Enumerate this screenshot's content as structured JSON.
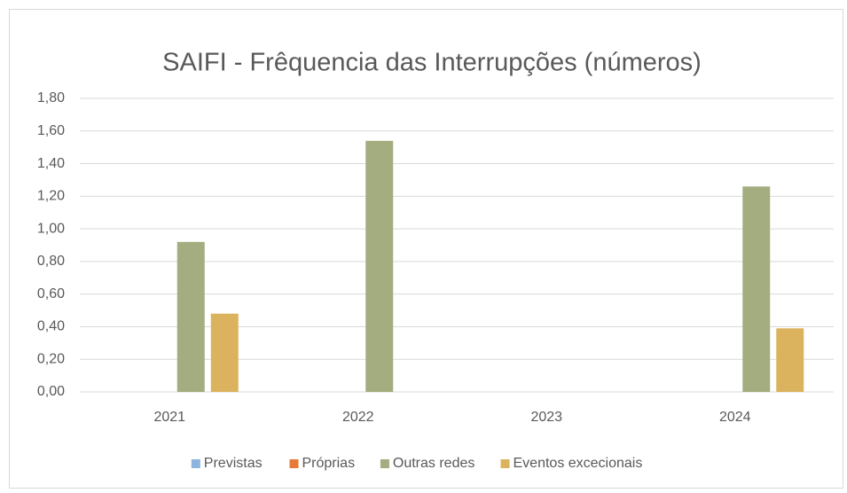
{
  "chart_data": {
    "type": "bar",
    "title": "SAIFI - Frêquencia das Interrupções (números)",
    "categories": [
      "2021",
      "2022",
      "2023",
      "2024"
    ],
    "series": [
      {
        "name": "Previstas",
        "color": "#8db4dc",
        "values": [
          0,
          0,
          0,
          0
        ]
      },
      {
        "name": "Próprias",
        "color": "#e57b37",
        "values": [
          0,
          0,
          0,
          0
        ]
      },
      {
        "name": "Outras redes",
        "color": "#a4ad7f",
        "values": [
          0.92,
          1.54,
          0,
          1.26
        ]
      },
      {
        "name": "Eventos excecionais",
        "color": "#dbb35e",
        "values": [
          0.48,
          0,
          0,
          0.39
        ]
      }
    ],
    "ylim": [
      0,
      1.8
    ],
    "yticks": [
      {
        "value": 0,
        "label": "0,00"
      },
      {
        "value": 0.2,
        "label": "0,20"
      },
      {
        "value": 0.4,
        "label": "0,40"
      },
      {
        "value": 0.6,
        "label": "0,60"
      },
      {
        "value": 0.8,
        "label": "0,80"
      },
      {
        "value": 1.0,
        "label": "1,00"
      },
      {
        "value": 1.2,
        "label": "1,20"
      },
      {
        "value": 1.4,
        "label": "1,40"
      },
      {
        "value": 1.6,
        "label": "1,60"
      },
      {
        "value": 1.8,
        "label": "1,80"
      }
    ],
    "grid": true,
    "legend": "bottom"
  }
}
